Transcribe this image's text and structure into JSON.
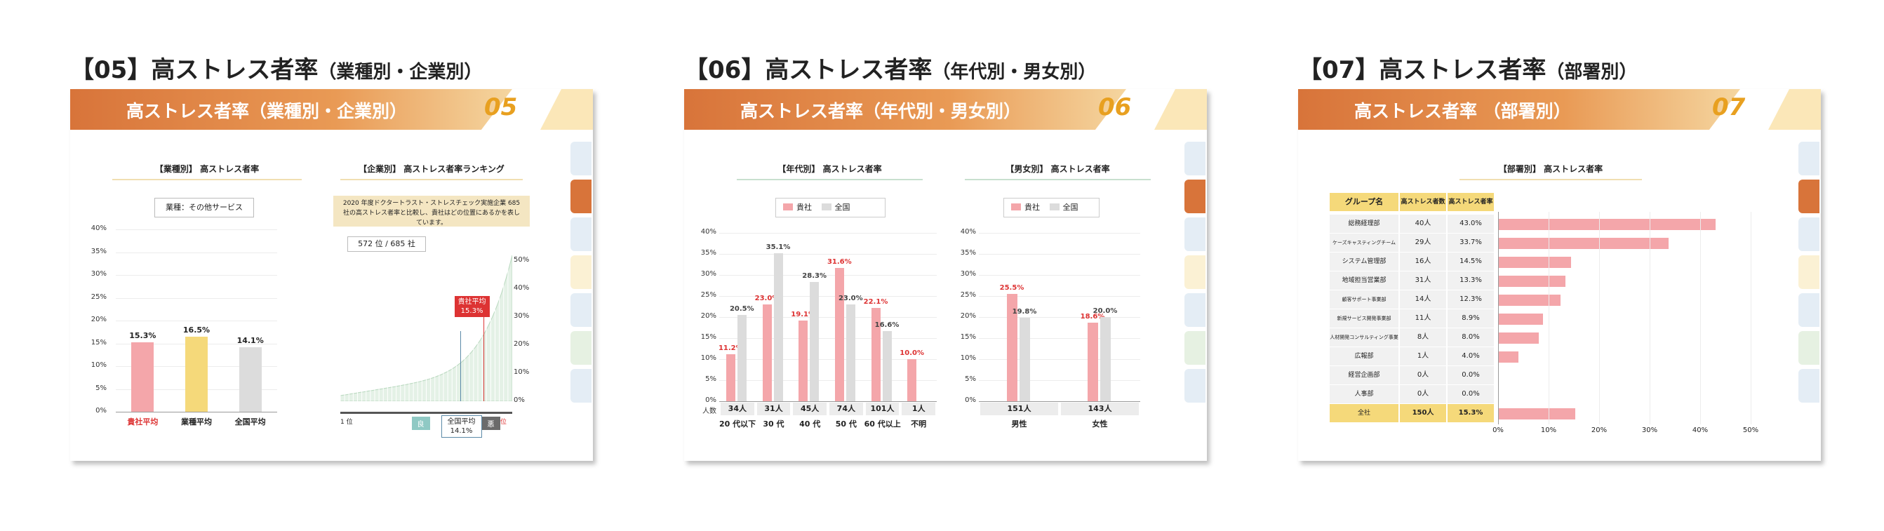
{
  "panels": [
    {
      "heading_main": "【05】高ストレス者率",
      "heading_sub": "（業種別・企業別）",
      "band_title": "高ストレス者率（業種別・企業別）",
      "band_num": "05",
      "chart_title_left": "【業種別】 高ストレス者率",
      "industry_label": "業種：その他サービス",
      "chart_title_right": "【企業別】 高ストレス者率ランキング",
      "ranking_note": "2020 年度ドクタートラスト・ストレスチェック実施企業 685 社の高ストレス者率と比較し、貴社はどの位置にあるかを表しています。",
      "rank_box": "572 位 / 685 社",
      "own_avg_label": "貴社平均",
      "own_avg_value": "15.3%",
      "national_avg_label": "全国平均",
      "national_avg_value": "14.1%",
      "good_label": "良",
      "bad_label": "悪",
      "rank_first": "1 位",
      "rank_last": "最下位"
    },
    {
      "heading_main": "【06】高ストレス者率",
      "heading_sub": "（年代別・男女別）",
      "band_title": "高ストレス者率（年代別・男女別）",
      "band_num": "06",
      "chart_title_left": "【年代別】 高ストレス者率",
      "chart_title_right": "【男女別】 高ストレス者率",
      "legend_own": "貴社",
      "legend_nat": "全国",
      "headcount_label": "人数"
    },
    {
      "heading_main": "【07】高ストレス者率",
      "heading_sub": "（部署別）",
      "band_title": "高ストレス者率 （部署別）",
      "band_num": "07",
      "chart_title": "【部署別】 高ストレス者率",
      "col_group": "グループ名",
      "col_count": "高ストレス者数",
      "col_rate": "高ストレス者率"
    }
  ],
  "chart_data": [
    {
      "type": "bar",
      "title": "【業種別】 高ストレス者率",
      "categories": [
        "貴社平均",
        "業種平均",
        "全国平均"
      ],
      "values": [
        15.3,
        16.5,
        14.1
      ],
      "value_labels": [
        "15.3%",
        "16.5%",
        "14.1%"
      ],
      "y_ticks": [
        "0%",
        "5%",
        "10%",
        "15%",
        "20%",
        "25%",
        "30%",
        "35%",
        "40%"
      ],
      "ylim": [
        0,
        40
      ],
      "colors": [
        "#f4a6aa",
        "#f5d97a",
        "#dcdcdc"
      ]
    },
    {
      "type": "area",
      "title": "【企業別】 高ストレス者率ランキング",
      "y_ticks": [
        "0%",
        "10%",
        "20%",
        "30%",
        "40%",
        "50%"
      ],
      "ylim": [
        0,
        50
      ]
    },
    {
      "type": "bar",
      "title": "【年代別】 高ストレス者率",
      "categories": [
        "20 代以下",
        "30 代",
        "40 代",
        "50 代",
        "60 代以上",
        "不明"
      ],
      "headcounts": [
        "34人",
        "31人",
        "45人",
        "74人",
        "101人",
        "1人"
      ],
      "series": [
        {
          "name": "貴社",
          "values": [
            11.2,
            23.0,
            19.1,
            31.6,
            22.1,
            10.0
          ],
          "labels": [
            "11.2%",
            "23.0%",
            "19.1%",
            "31.6%",
            "22.1%",
            "10.0%"
          ],
          "color": "#f4a6aa"
        },
        {
          "name": "全国",
          "values": [
            20.5,
            35.1,
            28.3,
            23.0,
            16.6,
            null
          ],
          "labels": [
            "20.5%",
            "35.1%",
            "28.3%",
            "23.0%",
            "16.6%",
            ""
          ],
          "color": "#dcdcdc"
        }
      ],
      "y_ticks": [
        "0%",
        "5%",
        "10%",
        "15%",
        "20%",
        "25%",
        "30%",
        "35%",
        "40%"
      ],
      "ylim": [
        0,
        40
      ]
    },
    {
      "type": "bar",
      "title": "【男女別】 高ストレス者率",
      "categories": [
        "男性",
        "女性"
      ],
      "headcounts": [
        "151人",
        "143人"
      ],
      "series": [
        {
          "name": "貴社",
          "values": [
            25.5,
            18.6
          ],
          "labels": [
            "25.5%",
            "18.6%"
          ],
          "color": "#f4a6aa"
        },
        {
          "name": "全国",
          "values": [
            19.8,
            20.0
          ],
          "labels": [
            "19.8%",
            "20.0%"
          ],
          "color": "#dcdcdc"
        }
      ],
      "y_ticks": [
        "0%",
        "5%",
        "10%",
        "15%",
        "20%",
        "25%",
        "30%",
        "35%",
        "40%"
      ],
      "ylim": [
        0,
        40
      ]
    },
    {
      "type": "bar",
      "title": "【部署別】 高ストレス者率",
      "orientation": "horizontal",
      "rows": [
        {
          "group": "総務経理部",
          "count": "40人",
          "rate_label": "43.0%",
          "rate": 43.0
        },
        {
          "group": "ケーズキャスティングチーム",
          "count": "29人",
          "rate_label": "33.7%",
          "rate": 33.7
        },
        {
          "group": "システム管理部",
          "count": "16人",
          "rate_label": "14.5%",
          "rate": 14.5
        },
        {
          "group": "地域担当営業部",
          "count": "31人",
          "rate_label": "13.3%",
          "rate": 13.3
        },
        {
          "group": "顧客サポート事業部",
          "count": "14人",
          "rate_label": "12.3%",
          "rate": 12.3
        },
        {
          "group": "新規サービス開発事業部",
          "count": "11人",
          "rate_label": "8.9%",
          "rate": 8.9
        },
        {
          "group": "人材開発コンサルティング事業部",
          "count": "8人",
          "rate_label": "8.0%",
          "rate": 8.0
        },
        {
          "group": "広報部",
          "count": "1人",
          "rate_label": "4.0%",
          "rate": 4.0
        },
        {
          "group": "経営企画部",
          "count": "0人",
          "rate_label": "0.0%",
          "rate": 0.0
        },
        {
          "group": "人事部",
          "count": "0人",
          "rate_label": "0.0%",
          "rate": 0.0
        }
      ],
      "total": {
        "group": "全社",
        "count": "150人",
        "rate_label": "15.3%",
        "rate": 15.3
      },
      "x_ticks": [
        "0%",
        "10%",
        "20%",
        "30%",
        "40%",
        "50%"
      ],
      "xlim": [
        0,
        50
      ],
      "color": "#f4a6aa"
    }
  ]
}
